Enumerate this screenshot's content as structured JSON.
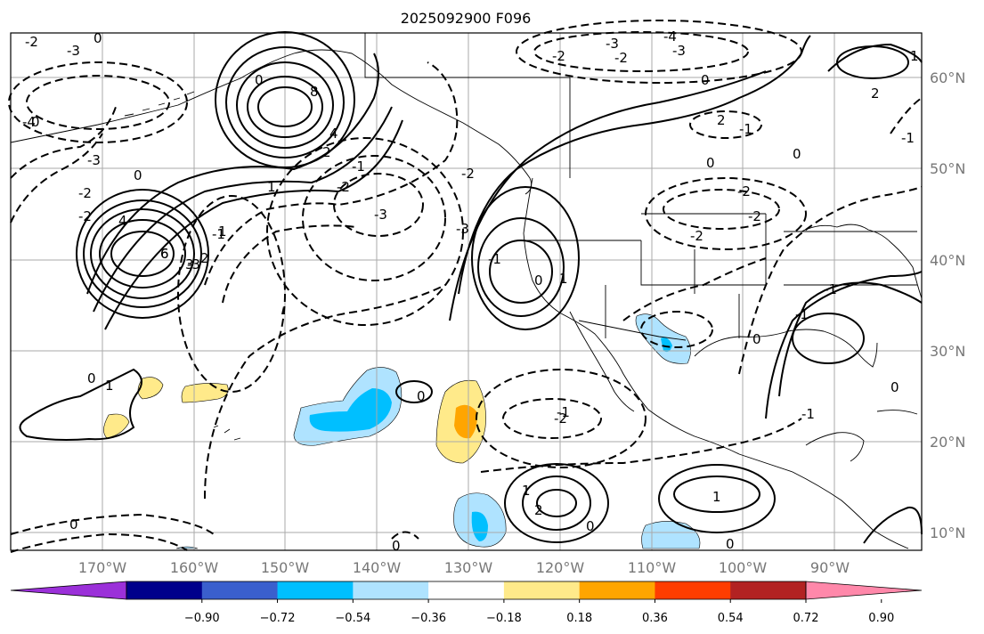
{
  "title": "2025092900 F096",
  "lon_labels": [
    "170°W",
    "160°W",
    "150°W",
    "140°W",
    "130°W",
    "120°W",
    "110°W",
    "100°W",
    "90°W"
  ],
  "lat_labels": [
    "60°N",
    "50°N",
    "40°N",
    "30°N",
    "20°N",
    "10°N"
  ],
  "colorbar": {
    "colors": [
      "#9b30d9",
      "#00008b",
      "#3a5fcd",
      "#00bfff",
      "#afe3ff",
      "#ffffff",
      "#ffea8a",
      "#ffa500",
      "#ff3d00",
      "#b22222",
      "#ff88aa"
    ],
    "tick_labels": [
      "−0.90",
      "−0.72",
      "−0.54",
      "−0.36",
      "−0.18",
      "0.18",
      "0.36",
      "0.54",
      "0.72",
      "0.90"
    ]
  },
  "contour_labels": [
    "-2",
    "-3",
    "0",
    "-4",
    "-3",
    "-2",
    "0",
    "6",
    "8",
    "4",
    "2",
    "1",
    "0",
    "-1",
    "-2",
    "-3",
    "-1",
    "0",
    "-3",
    "-2",
    "4",
    "6",
    "3",
    "2",
    "1",
    "-3",
    "-2",
    "1",
    "-1",
    "0",
    "0",
    "1",
    "-1",
    "-2",
    "-2",
    "-3",
    "-4",
    "-3",
    "0",
    "2",
    "2",
    "0",
    "-1",
    "-2",
    "-2",
    "-2",
    "-1",
    "1",
    "0",
    "0",
    "-1",
    "0",
    "-1",
    "-2",
    "1",
    "2",
    "0",
    "0",
    "1",
    "0",
    "0",
    "-1",
    "0"
  ]
}
